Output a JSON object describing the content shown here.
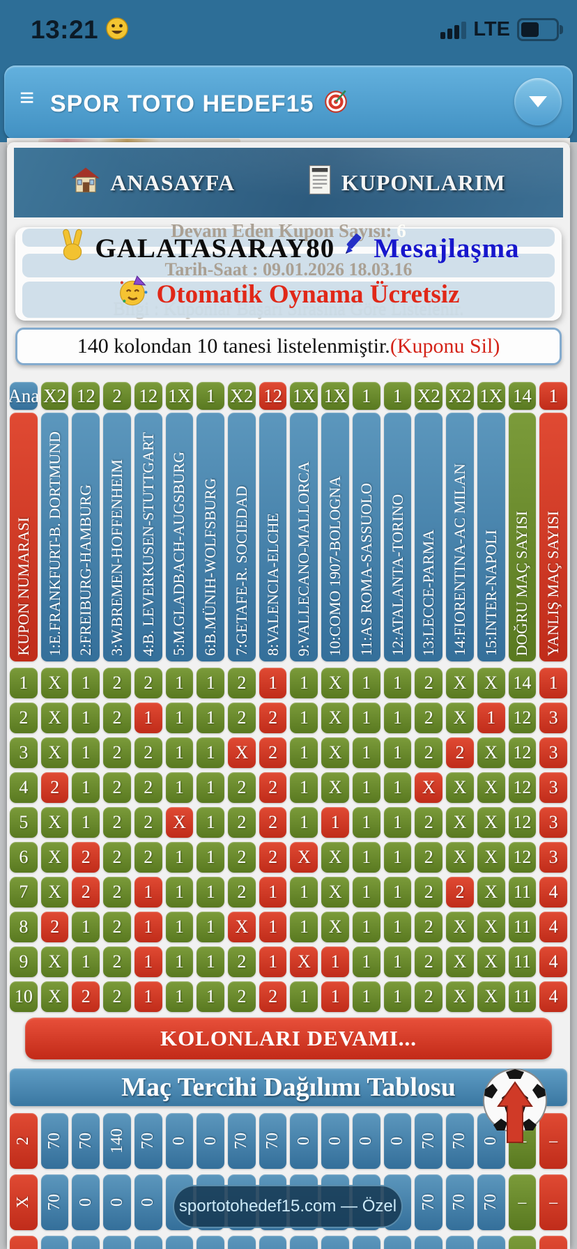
{
  "status_bar": {
    "time": "13:21",
    "network": "LTE"
  },
  "header": {
    "title": "SPOR TOTO HEDEF15",
    "menu_glyph": "≡"
  },
  "icons": {
    "status_emoji": "smiley-face",
    "title_emoji": "target-dart",
    "home": "house",
    "coupons": "receipt",
    "user": "victory-hand",
    "message": "pencil",
    "promo": "party-face",
    "distribution": "soccer-ball-red-up-arrow",
    "dropdown": "chevron-down"
  },
  "nav": {
    "home_label": "ANASAYFA",
    "coupons_label": "KUPONLARIM"
  },
  "panel": {
    "continuing_label": "Devam Eden Kupon Sayısı:",
    "continuing_value": "6",
    "username": "GALATASARAY80",
    "message_link": "Mesajlaşma",
    "datetime_line": "Tarih-Saat : 09.01.2026 18.03.16",
    "promo_text": "Otomatik Oynama Ücretsiz",
    "info_line": "Bilgi : Kuponlar Başarı Sırasına Göre Listelenir."
  },
  "listing": {
    "text": "140 kolondan 10 tanesi listelenmiştir.",
    "delete_action": "(Kuponu Sil)"
  },
  "table": {
    "main_row": {
      "label": "Ana",
      "picks": [
        "X2.g",
        "12.g",
        "2.g",
        "12.g",
        "1X.g",
        "1.g",
        "X2.g",
        "12.r",
        "1X.g",
        "1X.g",
        "1.g",
        "1.g",
        "X2.g",
        "X2.g",
        "1X.g"
      ],
      "correct": "14",
      "wrong": "1"
    },
    "columns": [
      "KUPON NUMARASI",
      "1:E.FRANKFURT-B. DORTMUND",
      "2:FREIBURG-HAMBURG",
      "3:W.BREMEN-HOFFENHEIM",
      "4:B. LEVERKUSEN-STUTTGART",
      "5:M.GLADBACH-AUGSBURG",
      "6:B.MÜNIH-WOLFSBURG",
      "7:GETAFE-R. SOCIEDAD",
      "8:VALENCIA-ELCHE",
      "9:VALLECANO-MALLORCA",
      "10:COMO 1907-BOLOGNA",
      "11:AS ROMA-SASSUOLO",
      "12:ATALANTA-TORINO",
      "13:LECCE-PARMA",
      "14:FIORENTINA-AC MILAN",
      "15:INTER-NAPOLI",
      "DOĞRU MAÇ SAYISI",
      "YANLIŞ MAÇ SAYISI"
    ],
    "rows": [
      {
        "no": "1",
        "picks": [
          "X.g",
          "1.g",
          "2.g",
          "2.g",
          "1.g",
          "1.g",
          "2.g",
          "1.r",
          "1.g",
          "X.g",
          "1.g",
          "1.g",
          "2.g",
          "X.g",
          "X.g"
        ],
        "correct": "14",
        "wrong": "1"
      },
      {
        "no": "2",
        "picks": [
          "X.g",
          "1.g",
          "2.g",
          "1.r",
          "1.g",
          "1.g",
          "2.g",
          "2.r",
          "1.g",
          "X.g",
          "1.g",
          "1.g",
          "2.g",
          "X.g",
          "1.r"
        ],
        "correct": "12",
        "wrong": "3"
      },
      {
        "no": "3",
        "picks": [
          "X.g",
          "1.g",
          "2.g",
          "2.g",
          "1.g",
          "1.g",
          "X.r",
          "2.r",
          "1.g",
          "X.g",
          "1.g",
          "1.g",
          "2.g",
          "2.r",
          "X.g"
        ],
        "correct": "12",
        "wrong": "3"
      },
      {
        "no": "4",
        "picks": [
          "2.r",
          "1.g",
          "2.g",
          "2.g",
          "1.g",
          "1.g",
          "2.g",
          "2.r",
          "1.g",
          "X.g",
          "1.g",
          "1.g",
          "X.r",
          "X.g",
          "X.g"
        ],
        "correct": "12",
        "wrong": "3"
      },
      {
        "no": "5",
        "picks": [
          "X.g",
          "1.g",
          "2.g",
          "2.g",
          "X.r",
          "1.g",
          "2.g",
          "2.r",
          "1.g",
          "1.r",
          "1.g",
          "1.g",
          "2.g",
          "X.g",
          "X.g"
        ],
        "correct": "12",
        "wrong": "3"
      },
      {
        "no": "6",
        "picks": [
          "X.g",
          "2.r",
          "2.g",
          "2.g",
          "1.g",
          "1.g",
          "2.g",
          "2.r",
          "X.r",
          "X.g",
          "1.g",
          "1.g",
          "2.g",
          "X.g",
          "X.g"
        ],
        "correct": "12",
        "wrong": "3"
      },
      {
        "no": "7",
        "picks": [
          "X.g",
          "2.r",
          "2.g",
          "1.r",
          "1.g",
          "1.g",
          "2.g",
          "1.r",
          "1.g",
          "X.g",
          "1.g",
          "1.g",
          "2.g",
          "2.r",
          "X.g"
        ],
        "correct": "11",
        "wrong": "4"
      },
      {
        "no": "8",
        "picks": [
          "2.r",
          "1.g",
          "2.g",
          "1.r",
          "1.g",
          "1.g",
          "X.r",
          "1.r",
          "1.g",
          "X.g",
          "1.g",
          "1.g",
          "2.g",
          "X.g",
          "X.g"
        ],
        "correct": "11",
        "wrong": "4"
      },
      {
        "no": "9",
        "picks": [
          "X.g",
          "1.g",
          "2.g",
          "1.r",
          "1.g",
          "1.g",
          "2.g",
          "1.r",
          "X.r",
          "1.r",
          "1.g",
          "1.g",
          "2.g",
          "X.g",
          "X.g"
        ],
        "correct": "11",
        "wrong": "4"
      },
      {
        "no": "10",
        "picks": [
          "X.g",
          "2.r",
          "2.g",
          "1.r",
          "1.g",
          "1.g",
          "2.g",
          "2.r",
          "1.g",
          "1.r",
          "1.g",
          "1.g",
          "2.g",
          "X.g",
          "X.g"
        ],
        "correct": "11",
        "wrong": "4"
      }
    ]
  },
  "more_button_label": "KOLONLARI DEVAMI...",
  "distribution": {
    "title": "Maç Tercihi Dağılımı Tablosu",
    "rows": [
      {
        "label": "2",
        "values": [
          "70",
          "70",
          "140",
          "70",
          "0",
          "0",
          "70",
          "70",
          "0",
          "0",
          "0",
          "0",
          "70",
          "70",
          "0"
        ],
        "correct": "–",
        "wrong": "–"
      },
      {
        "label": "X",
        "values": [
          "70",
          "0",
          "0",
          "0",
          "",
          "",
          "",
          "",
          "",
          "",
          "",
          "",
          "70",
          "70",
          "70"
        ],
        "correct": "–",
        "wrong": "–"
      },
      {
        "label": "",
        "values": [
          "",
          "",
          "",
          "",
          "",
          "",
          "",
          "",
          "",
          "",
          "",
          "",
          "",
          "",
          ""
        ],
        "correct": "",
        "wrong": ""
      }
    ]
  },
  "watermark": "sportotohedef15.com — Özel",
  "colors": {
    "green": "#6d8d2a",
    "red": "#d23a27",
    "blue": "#4383ad",
    "header_blue": "#4a9bcd",
    "top_bar": "#2d6e97"
  }
}
